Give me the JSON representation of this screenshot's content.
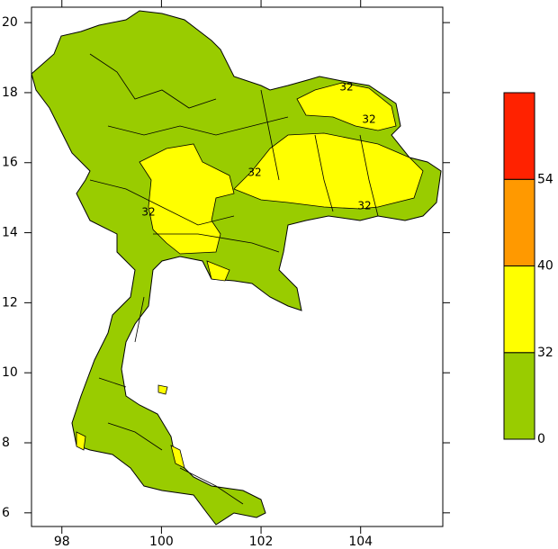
{
  "map": {
    "xlim": [
      97.39,
      105.65
    ],
    "ylim": [
      5.61,
      20.44
    ],
    "xticks": [
      98,
      100,
      102,
      104
    ],
    "yticks": [
      6,
      8,
      10,
      12,
      14,
      16,
      18,
      20
    ],
    "land_color": "#99cc00",
    "contour_labels": [
      "32",
      "32",
      "32",
      "32",
      "32"
    ],
    "colorbar": {
      "levels": [
        0,
        32,
        40,
        54
      ],
      "colors": [
        "#99cc00",
        "#ffff00",
        "#ff9900",
        "#ff2200"
      ]
    }
  }
}
